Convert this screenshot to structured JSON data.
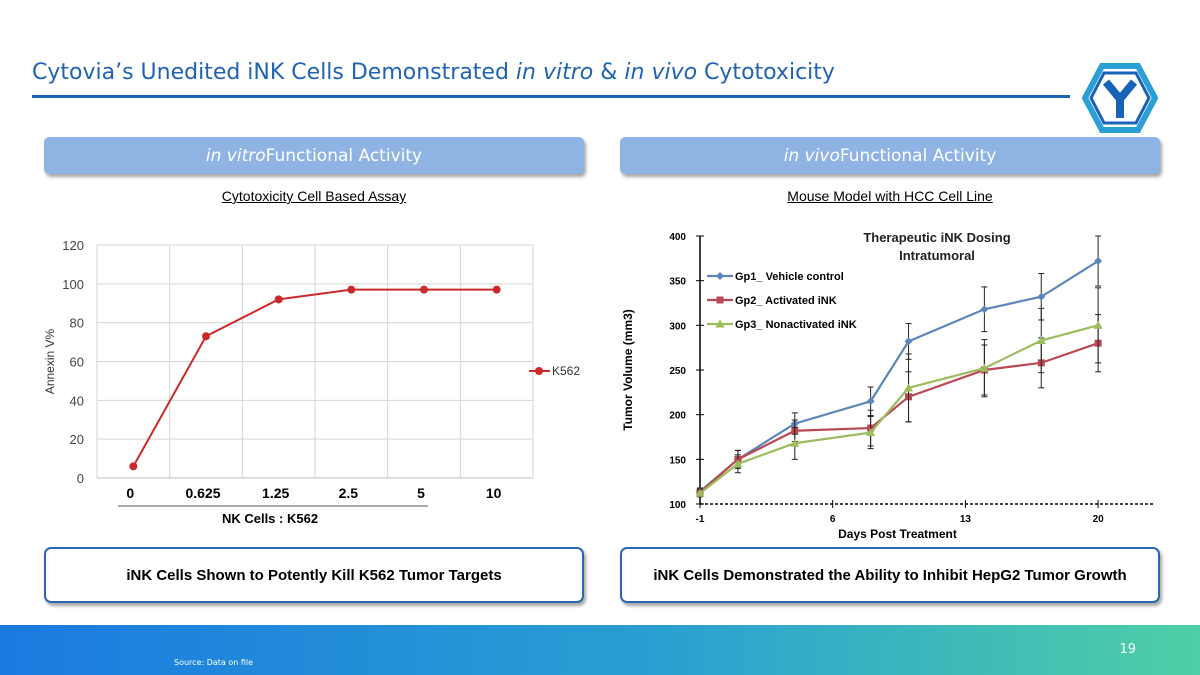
{
  "slide": {
    "title_part1": "Cytovia’s Unedited iNK Cells Demonstrated ",
    "title_italic1": "in vitro",
    "title_part2": " & ",
    "title_italic2": "in vivo",
    "title_part3": " Cytotoxicity",
    "accent_color": "#1f63b5",
    "logo_icon": "hexagon-y-logo-icon"
  },
  "left_panel": {
    "header_italic": "in vitro",
    "header_rest": " Functional Activity",
    "subtitle": "Cytotoxicity Cell Based Assay",
    "conclusion": "iNK Cells Shown to Potently Kill K562 Tumor Targets"
  },
  "right_panel": {
    "header_italic": "in vivo",
    "header_rest": " Functional Activity",
    "subtitle": "Mouse Model with HCC Cell Line",
    "conclusion": "iNK Cells Demonstrated the Ability to Inhibit HepG2 Tumor Growth"
  },
  "footer": {
    "page_number": "19",
    "source": "Source: Data on file"
  },
  "chart_data": [
    {
      "type": "line",
      "categories": [
        "0",
        "0.625",
        "1.25",
        "2.5",
        "5",
        "10"
      ],
      "series": [
        {
          "name": "K562",
          "values": [
            6,
            73,
            92,
            97,
            97,
            97
          ],
          "color": "#cc2a2a"
        }
      ],
      "xlabel": "NK Cells : K562",
      "ylabel": "Annexin V%",
      "ylim": [
        0,
        120
      ],
      "yticks": [
        "0",
        "20",
        "40",
        "60",
        "80",
        "100",
        "120"
      ],
      "grid": true,
      "legend": "right"
    },
    {
      "type": "line",
      "title_line1": "Therapeutic iNK Dosing",
      "title_line2": "Intratumoral",
      "x": [
        -1,
        1,
        4,
        8,
        10,
        14,
        17,
        20
      ],
      "series": [
        {
          "name": "Gp1_  Vehicle control",
          "values": [
            114,
            150,
            190,
            215,
            282,
            318,
            332,
            372
          ],
          "err": [
            4,
            10,
            12,
            16,
            20,
            25,
            26,
            28
          ],
          "color": "#5b87b8"
        },
        {
          "name": "Gp2_  Activated iNK",
          "values": [
            113,
            150,
            182,
            185,
            220,
            250,
            258,
            280
          ],
          "err": [
            4,
            10,
            12,
            20,
            28,
            28,
            28,
            32
          ],
          "color": "#b94a55"
        },
        {
          "name": "Gp3_  Nonactivated iNK",
          "values": [
            112,
            145,
            168,
            180,
            230,
            252,
            283,
            300
          ],
          "err": [
            4,
            10,
            18,
            18,
            38,
            32,
            36,
            42
          ],
          "color": "#9cbd5b"
        }
      ],
      "xlabel": "Days Post Treatment",
      "ylabel": "Tumor Volume (mm3)",
      "xticks": [
        "-1",
        "6",
        "13",
        "20"
      ],
      "xtick_values": [
        -1,
        6,
        13,
        20
      ],
      "yticks": [
        "100",
        "150",
        "200",
        "250",
        "300",
        "350",
        "400"
      ],
      "xlim": [
        -1,
        23
      ],
      "ylim": [
        100,
        400
      ],
      "legend": "top-left"
    }
  ]
}
